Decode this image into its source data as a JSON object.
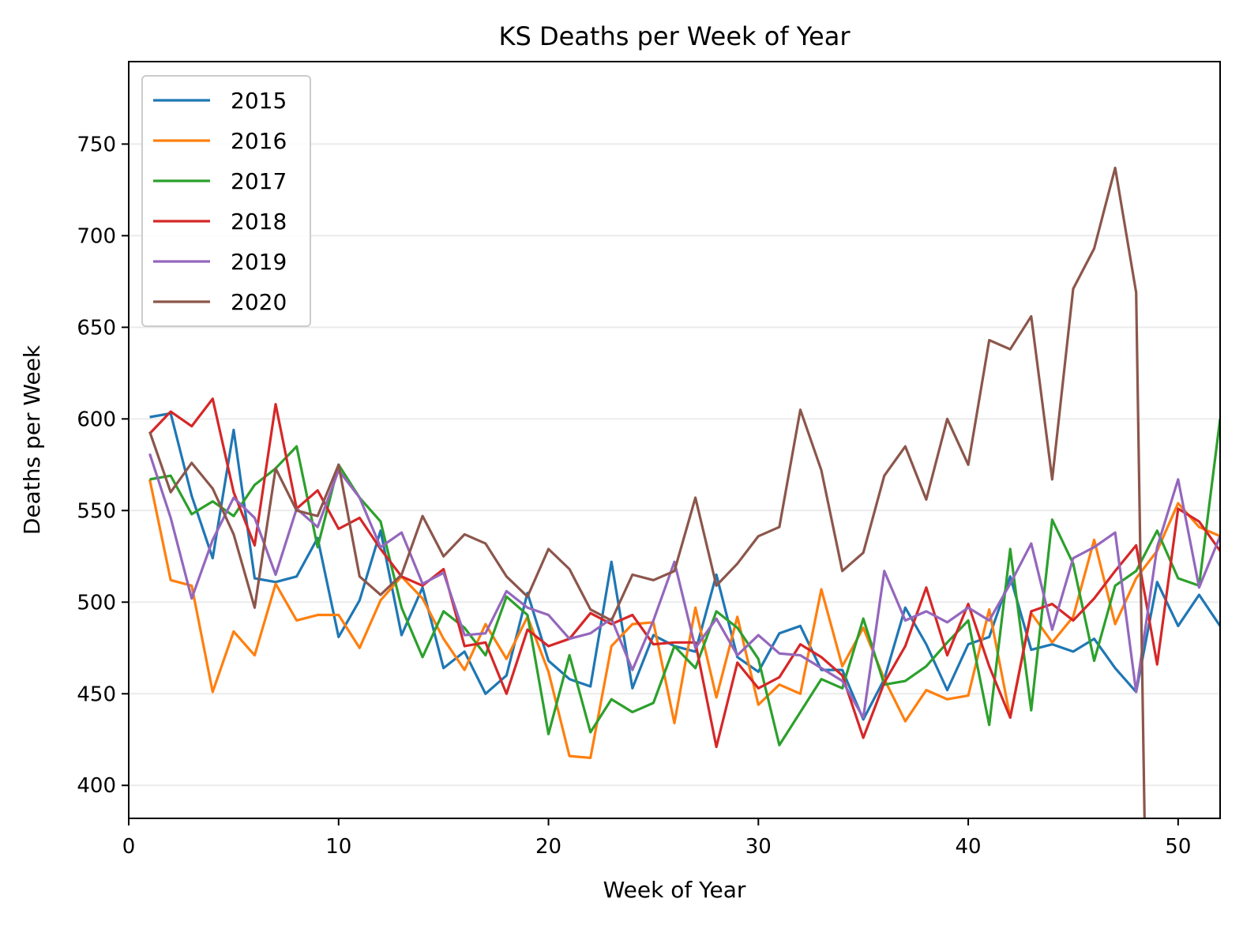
{
  "chart_data": {
    "type": "line",
    "title": "KS Deaths per Week of Year",
    "xlabel": "Week of Year",
    "ylabel": "Deaths per Week",
    "xlim": [
      0,
      52
    ],
    "ylim": [
      382,
      795
    ],
    "xticks": [
      0,
      10,
      20,
      30,
      40,
      50
    ],
    "yticks": [
      400,
      450,
      500,
      550,
      600,
      650,
      700,
      750
    ],
    "grid": "horizontal",
    "legend_position": "top-left",
    "series": [
      {
        "name": "2015",
        "color": "#1f77b4",
        "x": [
          1,
          2,
          3,
          4,
          5,
          6,
          7,
          8,
          9,
          10,
          11,
          12,
          13,
          14,
          15,
          16,
          17,
          18,
          19,
          20,
          21,
          22,
          23,
          24,
          25,
          26,
          27,
          28,
          29,
          30,
          31,
          32,
          33,
          34,
          35,
          36,
          37,
          38,
          39,
          40,
          41,
          42,
          43,
          44,
          45,
          46,
          47,
          48,
          49,
          50,
          51,
          52
        ],
        "values": [
          601,
          603,
          558,
          524,
          594,
          513,
          511,
          514,
          535,
          481,
          501,
          539,
          482,
          508,
          464,
          473,
          450,
          460,
          505,
          468,
          458,
          454,
          522,
          453,
          482,
          476,
          473,
          515,
          470,
          462,
          483,
          487,
          463,
          463,
          436,
          458,
          497,
          477,
          452,
          477,
          481,
          514,
          474,
          477,
          473,
          480,
          464,
          451,
          511,
          487,
          504,
          487
        ]
      },
      {
        "name": "2016",
        "color": "#ff7f0e",
        "x": [
          1,
          2,
          3,
          4,
          5,
          6,
          7,
          8,
          9,
          10,
          11,
          12,
          13,
          14,
          15,
          16,
          17,
          18,
          19,
          20,
          21,
          22,
          23,
          24,
          25,
          26,
          27,
          28,
          29,
          30,
          31,
          32,
          33,
          34,
          35,
          36,
          37,
          38,
          39,
          40,
          41,
          42,
          43,
          44,
          45,
          46,
          47,
          48,
          49,
          50,
          51,
          52
        ],
        "values": [
          567,
          512,
          509,
          451,
          484,
          471,
          510,
          490,
          493,
          493,
          475,
          501,
          514,
          502,
          480,
          463,
          488,
          469,
          492,
          462,
          416,
          415,
          476,
          488,
          489,
          434,
          497,
          448,
          492,
          444,
          455,
          450,
          507,
          465,
          486,
          458,
          435,
          452,
          447,
          449,
          496,
          437,
          494,
          478,
          492,
          534,
          488,
          513,
          528,
          554,
          541,
          536
        ]
      },
      {
        "name": "2017",
        "color": "#2ca02c",
        "x": [
          1,
          2,
          3,
          4,
          5,
          6,
          7,
          8,
          9,
          10,
          11,
          12,
          13,
          14,
          15,
          16,
          17,
          18,
          19,
          20,
          21,
          22,
          23,
          24,
          25,
          26,
          27,
          28,
          29,
          30,
          31,
          32,
          33,
          34,
          35,
          36,
          37,
          38,
          39,
          40,
          41,
          42,
          43,
          44,
          45,
          46,
          47,
          48,
          49,
          50,
          51,
          52
        ],
        "values": [
          567,
          569,
          548,
          555,
          547,
          564,
          573,
          585,
          530,
          575,
          557,
          544,
          497,
          470,
          495,
          486,
          471,
          503,
          493,
          428,
          471,
          429,
          447,
          440,
          445,
          476,
          464,
          495,
          486,
          469,
          422,
          440,
          458,
          453,
          491,
          455,
          457,
          465,
          478,
          490,
          433,
          529,
          441,
          545,
          521,
          468,
          509,
          517,
          539,
          513,
          509,
          600
        ]
      },
      {
        "name": "2018",
        "color": "#d62728",
        "x": [
          1,
          2,
          3,
          4,
          5,
          6,
          7,
          8,
          9,
          10,
          11,
          12,
          13,
          14,
          15,
          16,
          17,
          18,
          19,
          20,
          21,
          22,
          23,
          24,
          25,
          26,
          27,
          28,
          29,
          30,
          31,
          32,
          33,
          34,
          35,
          36,
          37,
          38,
          39,
          40,
          41,
          42,
          43,
          44,
          45,
          46,
          47,
          48,
          49,
          50,
          51,
          52
        ],
        "values": [
          592,
          604,
          596,
          611,
          560,
          531,
          608,
          551,
          561,
          540,
          546,
          529,
          514,
          509,
          518,
          476,
          478,
          450,
          485,
          476,
          480,
          494,
          488,
          493,
          477,
          478,
          478,
          421,
          467,
          453,
          459,
          477,
          470,
          460,
          426,
          456,
          476,
          508,
          471,
          499,
          465,
          437,
          495,
          499,
          490,
          502,
          517,
          531,
          466,
          551,
          544,
          528
        ]
      },
      {
        "name": "2019",
        "color": "#9467bd",
        "x": [
          1,
          2,
          3,
          4,
          5,
          6,
          7,
          8,
          9,
          10,
          11,
          12,
          13,
          14,
          15,
          16,
          17,
          18,
          19,
          20,
          21,
          22,
          23,
          24,
          25,
          26,
          27,
          28,
          29,
          30,
          31,
          32,
          33,
          34,
          35,
          36,
          37,
          38,
          39,
          40,
          41,
          42,
          43,
          44,
          45,
          46,
          47,
          48,
          49,
          50,
          51,
          52
        ],
        "values": [
          581,
          546,
          502,
          534,
          557,
          546,
          515,
          551,
          541,
          572,
          557,
          530,
          538,
          510,
          516,
          482,
          483,
          506,
          497,
          493,
          480,
          483,
          491,
          463,
          490,
          522,
          475,
          491,
          471,
          482,
          472,
          471,
          464,
          457,
          437,
          517,
          490,
          495,
          489,
          497,
          490,
          510,
          532,
          485,
          524,
          530,
          538,
          451,
          530,
          567,
          508,
          536
        ]
      },
      {
        "name": "2020",
        "color": "#8c564b",
        "x": [
          1,
          2,
          3,
          4,
          5,
          6,
          7,
          8,
          9,
          10,
          11,
          12,
          13,
          14,
          15,
          16,
          17,
          18,
          19,
          20,
          21,
          22,
          23,
          24,
          25,
          26,
          27,
          28,
          29,
          30,
          31,
          32,
          33,
          34,
          35,
          36,
          37,
          38,
          39,
          40,
          41,
          42,
          43,
          44,
          45,
          46,
          47,
          48,
          48.4
        ],
        "values": [
          593,
          560,
          576,
          562,
          537,
          497,
          573,
          550,
          547,
          575,
          514,
          504,
          515,
          547,
          525,
          537,
          532,
          514,
          503,
          529,
          518,
          496,
          490,
          515,
          512,
          517,
          557,
          509,
          521,
          536,
          541,
          605,
          572,
          517,
          527,
          569,
          585,
          556,
          600,
          575,
          643,
          638,
          656,
          567,
          671,
          693,
          737,
          669,
          382
        ]
      }
    ]
  }
}
